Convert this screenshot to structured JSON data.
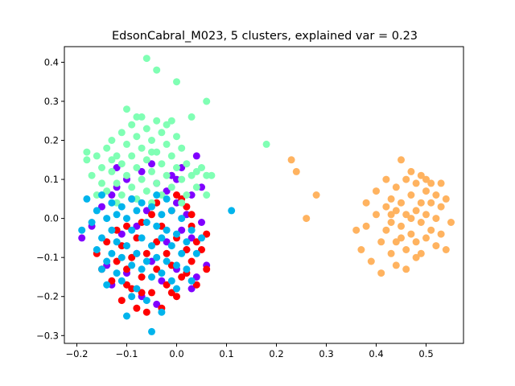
{
  "chart_data": {
    "type": "scatter",
    "title": "EdsonCabral_M023, 5 clusters, explained var = 0.23",
    "xlabel": "",
    "ylabel": "",
    "xlim": [
      -0.225,
      0.575
    ],
    "ylim": [
      -0.32,
      0.44
    ],
    "xticks": [
      -0.2,
      -0.1,
      0.0,
      0.1,
      0.2,
      0.3,
      0.4,
      0.5
    ],
    "xtick_labels": [
      "−0.2",
      "−0.1",
      "0.0",
      "0.1",
      "0.2",
      "0.3",
      "0.4",
      "0.5"
    ],
    "yticks": [
      -0.3,
      -0.2,
      -0.1,
      0.0,
      0.1,
      0.2,
      0.3,
      0.4
    ],
    "ytick_labels": [
      "−0.3",
      "−0.2",
      "−0.1",
      "0.0",
      "0.1",
      "0.2",
      "0.3",
      "0.4"
    ],
    "grid": false,
    "legend": "none",
    "series": [
      {
        "color": "#8000ff",
        "points": [
          [
            -0.19,
            -0.05
          ],
          [
            -0.17,
            -0.02
          ],
          [
            -0.15,
            0.03
          ],
          [
            -0.14,
            -0.12
          ],
          [
            -0.13,
            0.06
          ],
          [
            -0.13,
            -0.17
          ],
          [
            -0.12,
            0.08
          ],
          [
            -0.12,
            0.13
          ],
          [
            -0.11,
            -0.04
          ],
          [
            -0.1,
            0.1
          ],
          [
            -0.1,
            -0.14
          ],
          [
            -0.09,
            0.05
          ],
          [
            -0.08,
            -0.09
          ],
          [
            -0.07,
            0.12
          ],
          [
            -0.07,
            -0.2
          ],
          [
            -0.06,
            0.02
          ],
          [
            -0.05,
            -0.11
          ],
          [
            -0.04,
            0.09
          ],
          [
            -0.03,
            -0.16
          ],
          [
            -0.02,
            0.07
          ],
          [
            -0.02,
            -0.06
          ],
          [
            -0.01,
            0.11
          ],
          [
            0.0,
            -0.13
          ],
          [
            0.0,
            0.04
          ],
          [
            0.01,
            -0.03
          ],
          [
            0.01,
            0.13
          ],
          [
            0.02,
            -0.08
          ],
          [
            0.03,
            0.06
          ],
          [
            0.04,
            0.16
          ],
          [
            0.04,
            -0.15
          ],
          [
            0.05,
            -0.01
          ],
          [
            0.05,
            0.08
          ],
          [
            0.06,
            -0.12
          ],
          [
            -0.04,
            -0.22
          ],
          [
            -0.08,
            -0.02
          ],
          [
            0.03,
            -0.05
          ],
          [
            0.02,
            0.01
          ],
          [
            -0.05,
            0.14
          ],
          [
            0.0,
            0.1
          ],
          [
            0.03,
            -0.18
          ]
        ]
      },
      {
        "color": "#ff0000",
        "points": [
          [
            -0.16,
            -0.09
          ],
          [
            -0.15,
            -0.13
          ],
          [
            -0.14,
            -0.06
          ],
          [
            -0.13,
            -0.16
          ],
          [
            -0.12,
            -0.11
          ],
          [
            -0.11,
            -0.21
          ],
          [
            -0.11,
            -0.07
          ],
          [
            -0.1,
            -0.13
          ],
          [
            -0.1,
            -0.02
          ],
          [
            -0.09,
            -0.18
          ],
          [
            -0.09,
            -0.1
          ],
          [
            -0.08,
            -0.23
          ],
          [
            -0.08,
            -0.05
          ],
          [
            -0.07,
            -0.15
          ],
          [
            -0.07,
            -0.01
          ],
          [
            -0.06,
            -0.24
          ],
          [
            -0.06,
            -0.09
          ],
          [
            -0.05,
            -0.19
          ],
          [
            -0.05,
            0.01
          ],
          [
            -0.04,
            -0.13
          ],
          [
            -0.04,
            -0.06
          ],
          [
            -0.03,
            -0.23
          ],
          [
            -0.03,
            -0.02
          ],
          [
            -0.02,
            -0.17
          ],
          [
            -0.02,
            -0.09
          ],
          [
            -0.01,
            -0.12
          ],
          [
            -0.01,
            0.02
          ],
          [
            0.0,
            -0.2
          ],
          [
            0.0,
            -0.05
          ],
          [
            0.01,
            -0.15
          ],
          [
            0.01,
            0.05
          ],
          [
            0.02,
            -0.08
          ],
          [
            0.02,
            -0.14
          ],
          [
            0.03,
            -0.02
          ],
          [
            0.03,
            -0.11
          ],
          [
            0.04,
            -0.17
          ],
          [
            0.05,
            -0.08
          ],
          [
            0.06,
            -0.04
          ],
          [
            0.06,
            -0.13
          ],
          [
            0.02,
            0.03
          ],
          [
            -0.12,
            -0.03
          ],
          [
            -0.07,
            -0.19
          ],
          [
            0.0,
            0.06
          ],
          [
            -0.04,
            0.04
          ],
          [
            0.04,
            -0.06
          ],
          [
            -0.1,
            -0.17
          ],
          [
            0.03,
            0.01
          ],
          [
            -0.01,
            -0.19
          ]
        ]
      },
      {
        "color": "#80ffb4",
        "points": [
          [
            -0.18,
            0.17
          ],
          [
            -0.18,
            0.15
          ],
          [
            -0.17,
            0.11
          ],
          [
            -0.16,
            0.16
          ],
          [
            -0.15,
            0.13
          ],
          [
            -0.15,
            0.09
          ],
          [
            -0.14,
            0.18
          ],
          [
            -0.14,
            0.07
          ],
          [
            -0.13,
            0.12
          ],
          [
            -0.13,
            0.2
          ],
          [
            -0.12,
            0.16
          ],
          [
            -0.12,
            0.09
          ],
          [
            -0.11,
            0.22
          ],
          [
            -0.11,
            0.14
          ],
          [
            -0.11,
            0.06
          ],
          [
            -0.1,
            0.28
          ],
          [
            -0.1,
            0.19
          ],
          [
            -0.1,
            0.11
          ],
          [
            -0.09,
            0.24
          ],
          [
            -0.09,
            0.16
          ],
          [
            -0.09,
            0.08
          ],
          [
            -0.08,
            0.21
          ],
          [
            -0.08,
            0.13
          ],
          [
            -0.08,
            0.05
          ],
          [
            -0.07,
            0.26
          ],
          [
            -0.07,
            0.18
          ],
          [
            -0.07,
            0.1
          ],
          [
            -0.06,
            0.41
          ],
          [
            -0.06,
            0.23
          ],
          [
            -0.06,
            0.15
          ],
          [
            -0.06,
            0.07
          ],
          [
            -0.05,
            0.2
          ],
          [
            -0.05,
            0.12
          ],
          [
            -0.05,
            0.04
          ],
          [
            -0.04,
            0.38
          ],
          [
            -0.04,
            0.25
          ],
          [
            -0.04,
            0.17
          ],
          [
            -0.04,
            0.09
          ],
          [
            -0.03,
            0.22
          ],
          [
            -0.03,
            0.14
          ],
          [
            -0.03,
            0.06
          ],
          [
            -0.02,
            0.19
          ],
          [
            -0.02,
            0.11
          ],
          [
            -0.01,
            0.25
          ],
          [
            -0.01,
            0.16
          ],
          [
            -0.01,
            0.08
          ],
          [
            0.0,
            0.35
          ],
          [
            0.0,
            0.21
          ],
          [
            0.0,
            0.13
          ],
          [
            0.01,
            0.18
          ],
          [
            0.01,
            0.1
          ],
          [
            0.02,
            0.14
          ],
          [
            0.02,
            0.06
          ],
          [
            0.03,
            0.26
          ],
          [
            0.03,
            0.11
          ],
          [
            0.04,
            0.08
          ],
          [
            0.05,
            0.13
          ],
          [
            0.06,
            0.3
          ],
          [
            0.06,
            0.11
          ],
          [
            0.07,
            0.11
          ],
          [
            0.06,
            0.06
          ],
          [
            -0.16,
            0.06
          ],
          [
            -0.12,
            0.04
          ],
          [
            0.18,
            0.19
          ],
          [
            -0.02,
            0.24
          ],
          [
            -0.08,
            0.26
          ],
          [
            0.01,
            0.04
          ],
          [
            -0.13,
            0.15
          ],
          [
            0.04,
            0.12
          ],
          [
            -0.05,
            0.17
          ]
        ]
      },
      {
        "color": "#00b4ec",
        "points": [
          [
            -0.19,
            -0.03
          ],
          [
            -0.18,
            0.05
          ],
          [
            -0.17,
            -0.01
          ],
          [
            -0.16,
            0.02
          ],
          [
            -0.16,
            -0.08
          ],
          [
            -0.15,
            -0.05
          ],
          [
            -0.15,
            0.06
          ],
          [
            -0.14,
            -0.11
          ],
          [
            -0.14,
            0.0
          ],
          [
            -0.14,
            -0.17
          ],
          [
            -0.13,
            -0.03
          ],
          [
            -0.13,
            -0.09
          ],
          [
            -0.13,
            0.04
          ],
          [
            -0.12,
            -0.14
          ],
          [
            -0.12,
            -0.06
          ],
          [
            -0.12,
            0.01
          ],
          [
            -0.11,
            -0.1
          ],
          [
            -0.11,
            0.03
          ],
          [
            -0.11,
            -0.16
          ],
          [
            -0.1,
            -0.25
          ],
          [
            -0.1,
            -0.07
          ],
          [
            -0.1,
            0.0
          ],
          [
            -0.09,
            -0.12
          ],
          [
            -0.09,
            -0.03
          ],
          [
            -0.09,
            0.05
          ],
          [
            -0.08,
            -0.18
          ],
          [
            -0.08,
            -0.09
          ],
          [
            -0.08,
            0.02
          ],
          [
            -0.07,
            -0.13
          ],
          [
            -0.07,
            -0.05
          ],
          [
            -0.07,
            0.04
          ],
          [
            -0.06,
            -0.21
          ],
          [
            -0.06,
            -0.11
          ],
          [
            -0.06,
            -0.01
          ],
          [
            -0.05,
            -0.29
          ],
          [
            -0.05,
            -0.15
          ],
          [
            -0.05,
            -0.07
          ],
          [
            -0.05,
            0.03
          ],
          [
            -0.04,
            -0.1
          ],
          [
            -0.04,
            -0.02
          ],
          [
            -0.04,
            0.06
          ],
          [
            -0.03,
            -0.14
          ],
          [
            -0.03,
            -0.05
          ],
          [
            -0.03,
            0.01
          ],
          [
            -0.02,
            -0.11
          ],
          [
            -0.02,
            -0.03
          ],
          [
            -0.02,
            0.05
          ],
          [
            -0.01,
            -0.16
          ],
          [
            -0.01,
            -0.07
          ],
          [
            -0.01,
            0.02
          ],
          [
            0.0,
            -0.12
          ],
          [
            0.0,
            -0.04
          ],
          [
            0.01,
            -0.09
          ],
          [
            0.01,
            0.0
          ],
          [
            0.02,
            -0.06
          ],
          [
            0.02,
            -0.13
          ],
          [
            0.03,
            -0.03
          ],
          [
            0.04,
            -0.09
          ],
          [
            0.05,
            -0.05
          ],
          [
            0.11,
            0.02
          ],
          [
            -0.03,
            -0.24
          ],
          [
            -0.09,
            -0.2
          ],
          [
            0.0,
            -0.18
          ],
          [
            -0.15,
            -0.13
          ],
          [
            0.03,
            -0.16
          ]
        ]
      },
      {
        "color": "#ffb360",
        "points": [
          [
            0.23,
            0.15
          ],
          [
            0.24,
            0.12
          ],
          [
            0.26,
            0.0
          ],
          [
            0.28,
            0.06
          ],
          [
            0.36,
            -0.03
          ],
          [
            0.37,
            -0.08
          ],
          [
            0.38,
            0.04
          ],
          [
            0.38,
            -0.02
          ],
          [
            0.39,
            -0.11
          ],
          [
            0.4,
            0.07
          ],
          [
            0.4,
            0.01
          ],
          [
            0.41,
            -0.06
          ],
          [
            0.41,
            -0.14
          ],
          [
            0.42,
            0.03
          ],
          [
            0.42,
            -0.03
          ],
          [
            0.42,
            0.1
          ],
          [
            0.43,
            -0.09
          ],
          [
            0.43,
            0.05
          ],
          [
            0.43,
            -0.01
          ],
          [
            0.44,
            -0.12
          ],
          [
            0.44,
            0.08
          ],
          [
            0.44,
            0.02
          ],
          [
            0.45,
            -0.05
          ],
          [
            0.45,
            0.15
          ],
          [
            0.45,
            0.04
          ],
          [
            0.45,
            -0.02
          ],
          [
            0.46,
            -0.08
          ],
          [
            0.46,
            0.1
          ],
          [
            0.46,
            0.01
          ],
          [
            0.46,
            -0.13
          ],
          [
            0.47,
            0.06
          ],
          [
            0.47,
            -0.04
          ],
          [
            0.47,
            0.12
          ],
          [
            0.48,
            0.02
          ],
          [
            0.48,
            -0.06
          ],
          [
            0.48,
            0.09
          ],
          [
            0.48,
            -0.1
          ],
          [
            0.49,
            0.04
          ],
          [
            0.49,
            -0.01
          ],
          [
            0.49,
            0.11
          ],
          [
            0.5,
            0.07
          ],
          [
            0.5,
            -0.05
          ],
          [
            0.5,
            0.01
          ],
          [
            0.51,
            0.09
          ],
          [
            0.51,
            -0.03
          ],
          [
            0.51,
            0.04
          ],
          [
            0.52,
            -0.07
          ],
          [
            0.52,
            0.06
          ],
          [
            0.52,
            0.0
          ],
          [
            0.53,
            0.03
          ],
          [
            0.53,
            -0.04
          ],
          [
            0.54,
            0.05
          ],
          [
            0.54,
            -0.08
          ],
          [
            0.55,
            -0.01
          ],
          [
            0.53,
            0.09
          ],
          [
            0.49,
            -0.09
          ],
          [
            0.44,
            -0.06
          ],
          [
            0.47,
            0.0
          ],
          [
            0.5,
            0.1
          ],
          [
            0.43,
            0.01
          ]
        ]
      }
    ]
  }
}
